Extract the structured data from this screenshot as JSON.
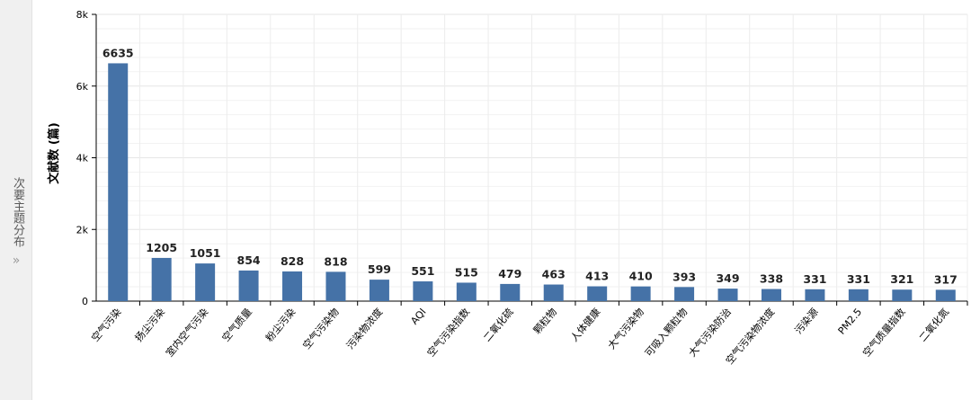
{
  "side_tab": {
    "label": "次要主题分布",
    "arrow": "»"
  },
  "chart_data": {
    "type": "bar",
    "title": "",
    "xlabel": "",
    "ylabel": "文献数 (篇)",
    "ylim": [
      0,
      8000
    ],
    "yticks": [
      0,
      2000,
      4000,
      6000,
      8000
    ],
    "ytick_labels": [
      "0",
      "2k",
      "4k",
      "6k",
      "8k"
    ],
    "grid": true,
    "bar_color": "#4572a7",
    "categories": [
      "空气污染",
      "扬尘污染",
      "室内空气污染",
      "空气质量",
      "粉尘污染",
      "空气污染物",
      "污染物浓度",
      "AQI",
      "空气污染指数",
      "二氧化硫",
      "颗粒物",
      "人体健康",
      "大气污染物",
      "可吸入颗粒物",
      "大气污染防治",
      "空气污染物浓度",
      "污染源",
      "PM2.5",
      "空气质量指数",
      "二氧化氮"
    ],
    "values": [
      6635,
      1205,
      1051,
      854,
      828,
      818,
      599,
      551,
      515,
      479,
      463,
      413,
      410,
      393,
      349,
      338,
      331,
      331,
      321,
      317
    ]
  }
}
